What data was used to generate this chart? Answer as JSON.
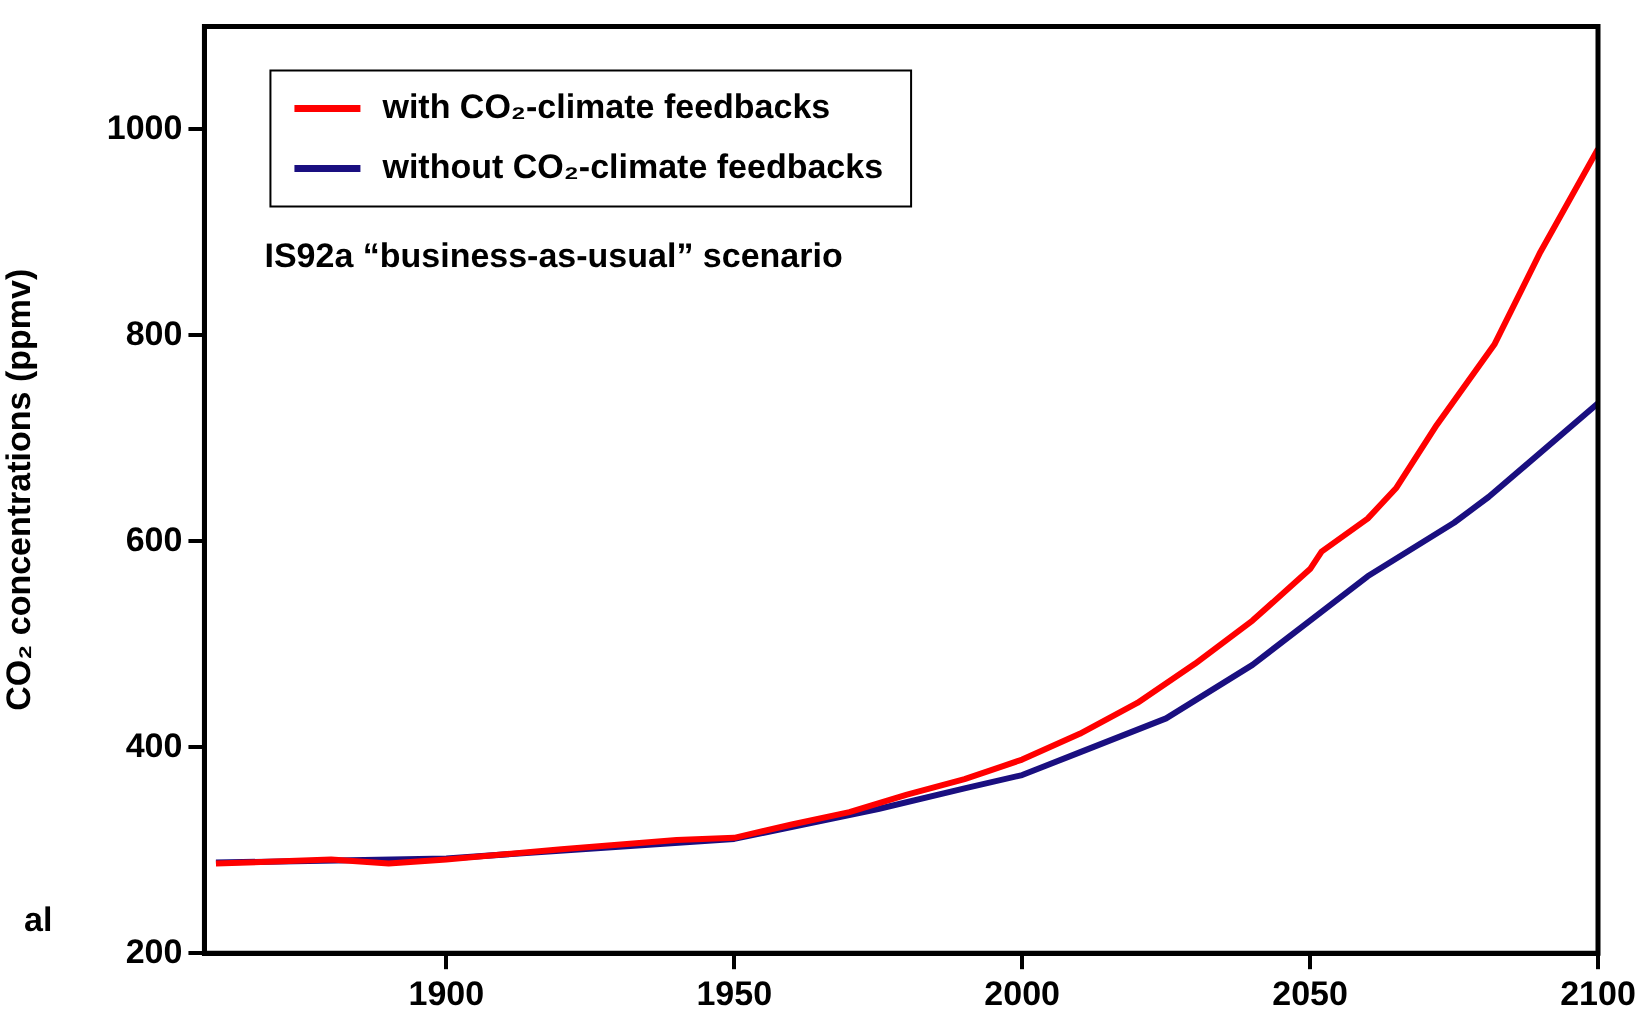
{
  "chart_data": {
    "type": "line",
    "ylabel": "CO₂ concentrations (ppmv)",
    "xlim": [
      1858,
      2100
    ],
    "xticks": [
      1900,
      1950,
      2000,
      2050,
      2100
    ],
    "ylim": [
      200,
      1100
    ],
    "yticks": [
      200,
      400,
      600,
      800,
      1000
    ],
    "grid": false,
    "legend": "top left",
    "marker": "none",
    "line_style": "solid",
    "annotations": [
      "IS92a “business-as-usual” scenario",
      "al"
    ],
    "series": [
      {
        "name": "with CO₂-climate feedbacks",
        "color": "#ff0000",
        "x": [
          1860,
          1880,
          1890,
          1900,
          1920,
          1940,
          1950,
          1960,
          1970,
          1980,
          1990,
          2000,
          2010,
          2020,
          2030,
          2040,
          2050,
          2052,
          2060,
          2065,
          2072,
          2082,
          2090,
          2100
        ],
        "values": [
          287,
          291,
          287,
          291,
          301,
          310,
          312,
          325,
          337,
          354,
          369,
          388,
          413,
          443,
          481,
          523,
          573,
          590,
          622,
          652,
          713,
          791,
          881,
          981
        ]
      },
      {
        "name": "without CO₂-climate feedbacks",
        "color": "#1a0f80",
        "x": [
          1860,
          1900,
          1950,
          1975,
          1990,
          2000,
          2010,
          2025,
          2040,
          2050,
          2060,
          2075,
          2081,
          2100
        ],
        "values": [
          288,
          292,
          311,
          340,
          360,
          373,
          395,
          428,
          480,
          523,
          566,
          618,
          643,
          734
        ]
      }
    ]
  }
}
